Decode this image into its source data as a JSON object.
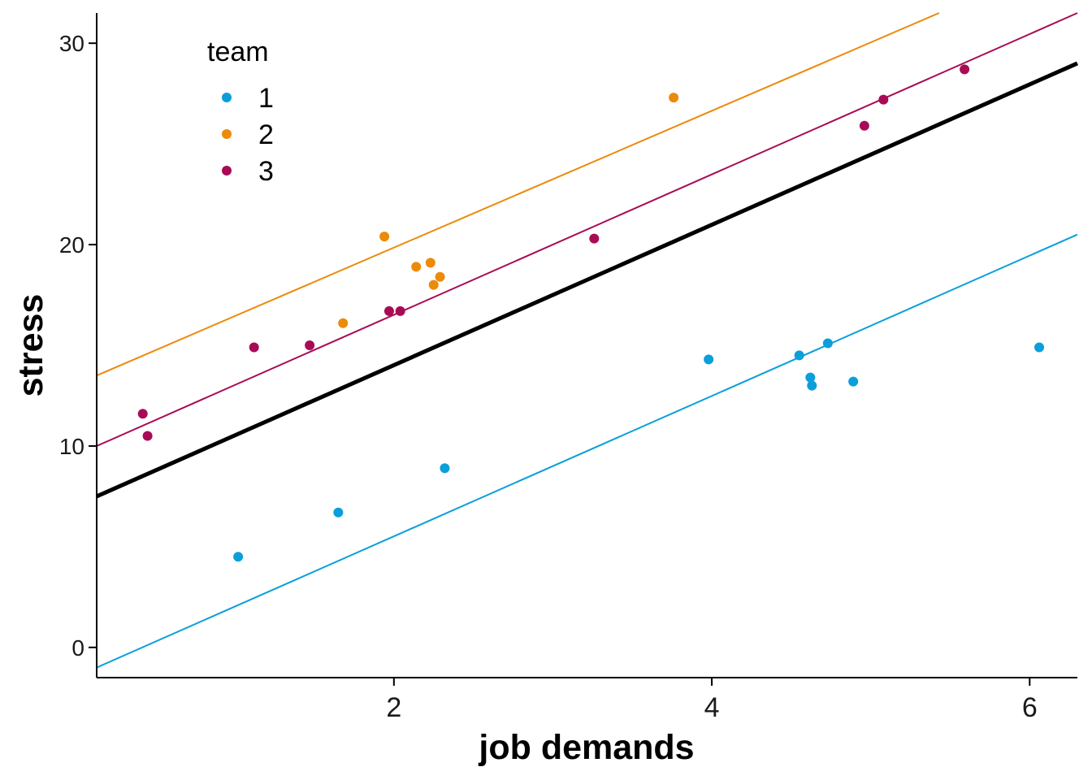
{
  "chart_data": {
    "type": "scatter",
    "xlabel": "job demands",
    "ylabel": "stress",
    "xlim": [
      0.13,
      6.3
    ],
    "ylim": [
      -1.5,
      31.5
    ],
    "x_ticks": [
      2,
      4,
      6
    ],
    "y_ticks": [
      0,
      10,
      20,
      30
    ],
    "grid": false,
    "legend": {
      "title": "team",
      "placement": "top-left",
      "entries": [
        {
          "label": "1",
          "color": "#0a9fdb"
        },
        {
          "label": "2",
          "color": "#ec8a0a"
        },
        {
          "label": "3",
          "color": "#a80b55"
        }
      ]
    },
    "series": [
      {
        "name": "1",
        "color": "#0a9fdb",
        "points": [
          {
            "x": 1.02,
            "y": 4.5
          },
          {
            "x": 1.65,
            "y": 6.7
          },
          {
            "x": 2.32,
            "y": 8.9
          },
          {
            "x": 3.98,
            "y": 14.3
          },
          {
            "x": 4.55,
            "y": 14.5
          },
          {
            "x": 4.62,
            "y": 13.4
          },
          {
            "x": 4.63,
            "y": 13.0
          },
          {
            "x": 4.73,
            "y": 15.1
          },
          {
            "x": 4.89,
            "y": 13.2
          },
          {
            "x": 6.06,
            "y": 14.9
          }
        ],
        "fit_line": [
          {
            "x": 0.13,
            "y": -1.0
          },
          {
            "x": 6.3,
            "y": 20.5
          }
        ]
      },
      {
        "name": "2",
        "color": "#ec8a0a",
        "points": [
          {
            "x": 1.68,
            "y": 16.1
          },
          {
            "x": 1.94,
            "y": 20.4
          },
          {
            "x": 2.14,
            "y": 18.9
          },
          {
            "x": 2.23,
            "y": 19.1
          },
          {
            "x": 2.25,
            "y": 18.0
          },
          {
            "x": 2.29,
            "y": 18.4
          },
          {
            "x": 3.76,
            "y": 27.3
          }
        ],
        "fit_line": [
          {
            "x": 0.13,
            "y": 13.5
          },
          {
            "x": 5.43,
            "y": 31.5
          }
        ]
      },
      {
        "name": "3",
        "color": "#a80b55",
        "points": [
          {
            "x": 0.42,
            "y": 11.6
          },
          {
            "x": 0.45,
            "y": 10.5
          },
          {
            "x": 1.12,
            "y": 14.9
          },
          {
            "x": 1.47,
            "y": 15.0
          },
          {
            "x": 1.97,
            "y": 16.7
          },
          {
            "x": 2.04,
            "y": 16.7
          },
          {
            "x": 3.26,
            "y": 20.3
          },
          {
            "x": 4.96,
            "y": 25.9
          },
          {
            "x": 5.08,
            "y": 27.2
          },
          {
            "x": 5.59,
            "y": 28.7
          }
        ],
        "fit_line": [
          {
            "x": 0.13,
            "y": 10.0
          },
          {
            "x": 6.3,
            "y": 31.5
          }
        ]
      }
    ],
    "overall_line": {
      "color": "#000000",
      "points": [
        {
          "x": 0.13,
          "y": 7.5
        },
        {
          "x": 6.3,
          "y": 29.0
        }
      ]
    }
  }
}
